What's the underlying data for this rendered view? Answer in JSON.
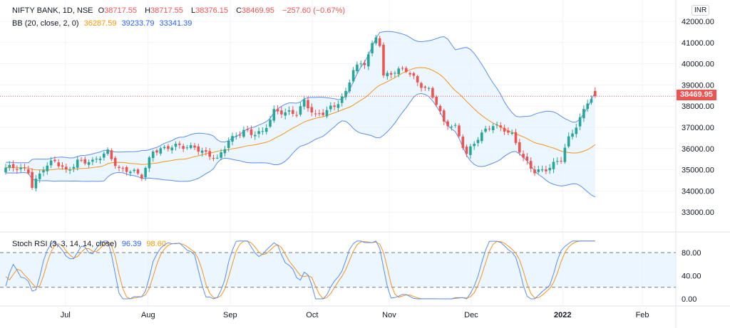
{
  "header": {
    "symbol": "NIFTY BANK, 1D, NSE",
    "o_label": "O",
    "o": "38717.55",
    "h_label": "H",
    "h": "38717.55",
    "l_label": "L",
    "l": "38376.15",
    "c_label": "C",
    "c": "38469.95",
    "change": "−257.60 (−0.67%)"
  },
  "bb_legend": {
    "label": "BB (20, close, 2, 0)",
    "basis": "36287.59",
    "upper": "39233.79",
    "lower": "33341.39"
  },
  "stoch_legend": {
    "label": "Stoch RSI (3, 3, 14, 14, close)",
    "k": "96.39",
    "d": "98.60"
  },
  "currency": "INR",
  "last_price": "38469.95",
  "colors": {
    "up": "#26a69a",
    "down": "#ef5350",
    "bb_basis": "#f7931a",
    "bb_band": "#5b8def",
    "band_fill": "#e3f2fd",
    "k": "#5b8def",
    "d": "#f7931a"
  },
  "chart_data": {
    "type": "candlestick",
    "price_ticks": [
      "42000.00",
      "41000.00",
      "40000.00",
      "39000.00",
      "38000.00",
      "37000.00",
      "36000.00",
      "35000.00",
      "34000.00",
      "33000.00"
    ],
    "price_tick_values": [
      42000,
      41000,
      40000,
      39000,
      38000,
      37000,
      36000,
      35000,
      34000,
      33000
    ],
    "rsi_ticks": [
      "80.00",
      "40.00",
      "0.00"
    ],
    "rsi_tick_values": [
      80,
      40,
      0
    ],
    "rsi_levels": [
      80,
      20
    ],
    "time_labels": [
      {
        "label": "Jul",
        "day": 15.8
      },
      {
        "label": "Aug",
        "day": 37.7
      },
      {
        "label": "Sep",
        "day": 59.4
      },
      {
        "label": "Oct",
        "day": 81.1
      },
      {
        "label": "Nov",
        "day": 101.5
      },
      {
        "label": "Dec",
        "day": 123.2
      },
      {
        "label": "2022",
        "day": 147.4
      },
      {
        "label": "Feb",
        "day": 168.5
      }
    ],
    "close_anchors": [
      [
        0,
        35100
      ],
      [
        6,
        34950
      ],
      [
        7,
        34280
      ],
      [
        10,
        35100
      ],
      [
        13,
        35350
      ],
      [
        16,
        34950
      ],
      [
        19,
        35450
      ],
      [
        23,
        35300
      ],
      [
        27,
        35900
      ],
      [
        30,
        35050
      ],
      [
        32,
        34950
      ],
      [
        36,
        34700
      ],
      [
        39,
        35960
      ],
      [
        42,
        35960
      ],
      [
        46,
        36120
      ],
      [
        50,
        36120
      ],
      [
        53,
        35700
      ],
      [
        56,
        35450
      ],
      [
        59,
        36460
      ],
      [
        63,
        36800
      ],
      [
        65,
        36630
      ],
      [
        68,
        36800
      ],
      [
        71,
        37800
      ],
      [
        74,
        37630
      ],
      [
        77,
        37630
      ],
      [
        79,
        38300
      ],
      [
        82,
        37570
      ],
      [
        84,
        37630
      ],
      [
        87,
        37970
      ],
      [
        90,
        38700
      ],
      [
        92,
        39800
      ],
      [
        95,
        39970
      ],
      [
        98,
        41260
      ],
      [
        99,
        40990
      ],
      [
        100,
        39480
      ],
      [
        103,
        39650
      ],
      [
        106,
        39650
      ],
      [
        109,
        39150
      ],
      [
        112,
        38800
      ],
      [
        114,
        38130
      ],
      [
        116,
        37130
      ],
      [
        119,
        37030
      ],
      [
        122,
        35800
      ],
      [
        125,
        36460
      ],
      [
        129,
        37130
      ],
      [
        132,
        36970
      ],
      [
        134,
        36630
      ],
      [
        137,
        35460
      ],
      [
        140,
        34950
      ],
      [
        144,
        35120
      ],
      [
        147,
        35460
      ],
      [
        149,
        36460
      ],
      [
        152,
        37470
      ],
      [
        154,
        38240
      ],
      [
        156,
        38470
      ]
    ],
    "y_range": [
      33000,
      42000
    ],
    "rsi_range": [
      0,
      100
    ]
  }
}
